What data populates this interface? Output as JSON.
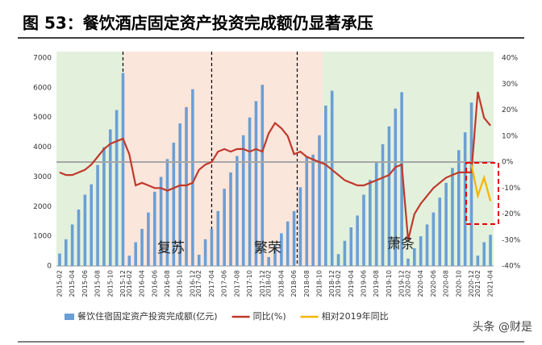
{
  "chart_data": {
    "type": "bar-line",
    "title": "图 53：餐饮酒店固定资产投资完成额仍显著承压",
    "annotations": [
      "复苏",
      "繁荣",
      "萧条"
    ],
    "watermark": "头条 @财是",
    "categories": [
      "2015-02",
      null,
      "2015-04",
      null,
      "2015-06",
      null,
      "2015-08",
      null,
      "2015-10",
      null,
      "2015-12",
      "2016-02",
      null,
      "2016-04",
      null,
      "2016-06",
      null,
      "2016-08",
      null,
      "2016-10",
      null,
      "2016-12",
      "2017-02",
      null,
      "2017-04",
      null,
      "2017-06",
      null,
      "2017-08",
      null,
      "2017-10",
      null,
      "2017-12",
      "2018-02",
      null,
      "2018-04",
      null,
      "2018-06",
      null,
      "2018-08",
      null,
      "2018-10",
      null,
      "2018-12",
      "2019-02",
      null,
      "2019-04",
      null,
      "2019-06",
      null,
      "2019-08",
      null,
      "2019-10",
      null,
      "2019-12",
      "2020-02",
      null,
      "2020-04",
      null,
      "2020-06",
      null,
      "2020-08",
      null,
      "2020-10",
      null,
      "2020-12",
      "2021-02",
      null,
      "2021-04"
    ],
    "series": [
      {
        "name": "餐饮住宿固定资产投资完成额(亿元)",
        "color": "#6b9fd4",
        "type": "bar",
        "values": [
          420,
          900,
          1400,
          1900,
          2400,
          2750,
          3400,
          4000,
          4600,
          5250,
          6500,
          350,
          800,
          1250,
          1800,
          2500,
          3000,
          3600,
          4150,
          4800,
          5350,
          5950,
          380,
          900,
          1250,
          1850,
          2600,
          3150,
          3700,
          4400,
          5000,
          5550,
          6100,
          300,
          700,
          1100,
          1500,
          1850,
          2650,
          3700,
          3750,
          4400,
          5400,
          5900,
          400,
          850,
          1300,
          1700,
          2400,
          2900,
          3500,
          4100,
          4700,
          5300,
          5850,
          250,
          600,
          1000,
          1400,
          1800,
          2300,
          2800,
          3300,
          3900,
          4500,
          5500,
          350,
          800,
          1050
        ]
      },
      {
        "name": "同比(%)",
        "color": "#c0392b",
        "type": "line",
        "axis": "y2",
        "values": [
          -4,
          -5,
          -5,
          -4,
          -3,
          -1,
          2,
          5,
          7,
          8,
          9,
          3,
          -9,
          -8,
          -9,
          -10,
          -10,
          -11,
          -10,
          -9,
          -9,
          -8,
          -3,
          -1,
          0,
          4,
          5,
          4,
          5,
          5,
          4,
          5,
          4,
          11,
          15,
          13,
          10,
          3,
          4,
          2,
          1,
          0,
          -1,
          -3,
          -5,
          -7,
          -8,
          -9,
          -9,
          -8,
          -7,
          -6,
          -5,
          -2,
          -1,
          -30,
          -20,
          -16,
          -13,
          -10,
          -8,
          -6,
          -5,
          -4,
          -4,
          -4,
          27,
          17,
          14
        ]
      },
      {
        "name": "相对2019年同比",
        "color": "#f5b400",
        "type": "line",
        "axis": "y2",
        "values": [
          null,
          null,
          null,
          null,
          null,
          null,
          null,
          null,
          null,
          null,
          null,
          null,
          null,
          null,
          null,
          null,
          null,
          null,
          null,
          null,
          null,
          null,
          null,
          null,
          null,
          null,
          null,
          null,
          null,
          null,
          null,
          null,
          null,
          null,
          null,
          null,
          null,
          null,
          null,
          null,
          null,
          null,
          null,
          null,
          null,
          null,
          null,
          null,
          null,
          null,
          null,
          null,
          null,
          null,
          null,
          null,
          null,
          null,
          null,
          null,
          null,
          null,
          null,
          null,
          null,
          -1,
          -13,
          -6,
          -15
        ]
      }
    ],
    "ylim": [
      0,
      7000
    ],
    "yticks": [
      0,
      1000,
      2000,
      3000,
      4000,
      5000,
      6000,
      7000
    ],
    "y2lim": [
      -40,
      40
    ],
    "y2ticks": [
      {
        "value": 40,
        "label": "40%"
      },
      {
        "value": 30,
        "label": "30%"
      },
      {
        "value": 20,
        "label": "20%"
      },
      {
        "value": 10,
        "label": "10%"
      },
      {
        "value": 0,
        "label": "0%"
      },
      {
        "value": -10,
        "label": "-10%"
      },
      {
        "value": -20,
        "label": "-20%"
      },
      {
        "value": -30,
        "label": "-30%"
      },
      {
        "value": -40,
        "label": "-40%"
      }
    ]
  }
}
